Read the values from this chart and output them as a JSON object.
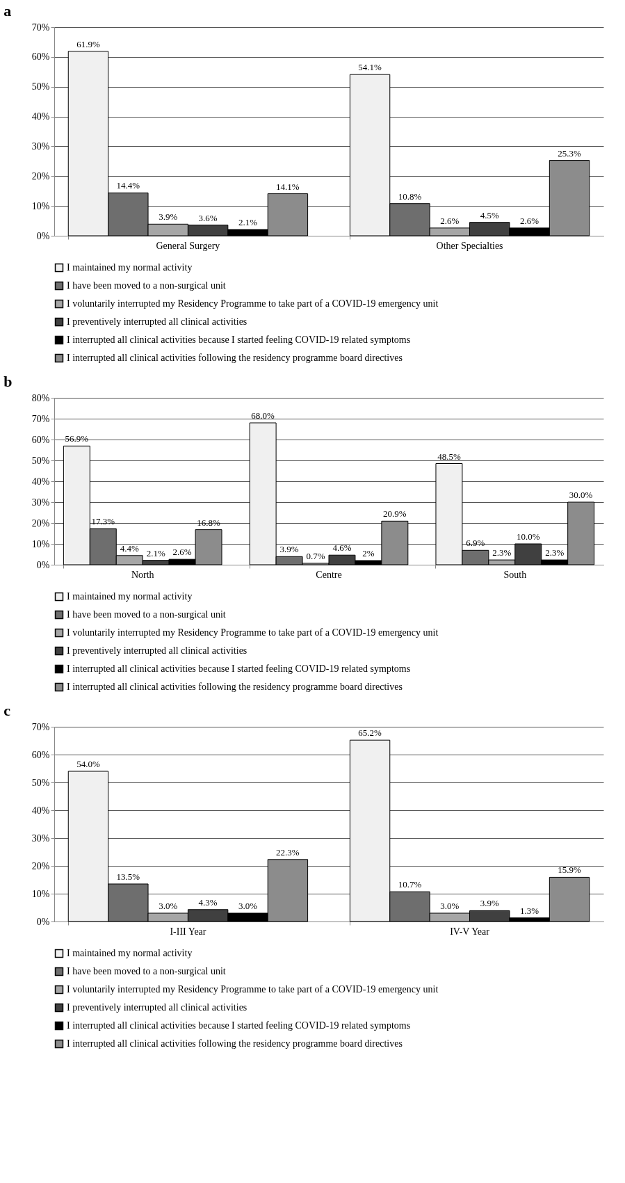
{
  "chart_data": [
    {
      "type": "bar",
      "title": "a",
      "categories": [
        "General Surgery",
        "Other Specialties"
      ],
      "ylim": [
        0,
        70
      ],
      "yticks": [
        {
          "value": 0,
          "label": "0%"
        },
        {
          "value": 10,
          "label": "10%"
        },
        {
          "value": 20,
          "label": "20%"
        },
        {
          "value": 30,
          "label": "30%"
        },
        {
          "value": 40,
          "label": "40%"
        },
        {
          "value": 50,
          "label": "50%"
        },
        {
          "value": 60,
          "label": "60%"
        },
        {
          "value": 70,
          "label": "70%"
        }
      ],
      "grid": "y",
      "legend": "bottom",
      "series": [
        {
          "name": "I maintained my normal activity",
          "color": "#f0f0f0",
          "values": [
            61.9,
            54.1
          ],
          "value_labels": [
            "61.9%",
            "54.1%"
          ]
        },
        {
          "name": "I have been moved to a non-surgical unit",
          "color": "#6e6e6e",
          "values": [
            14.4,
            10.8
          ],
          "value_labels": [
            "14.4%",
            "10.8%"
          ]
        },
        {
          "name": "I voluntarily interrupted my Residency Programme to take part of a COVID-19 emergency unit",
          "color": "#a6a6a6",
          "values": [
            3.9,
            2.6
          ],
          "value_labels": [
            "3.9%",
            "2.6%"
          ]
        },
        {
          "name": "I preventively interrupted all clinical activities",
          "color": "#404040",
          "values": [
            3.6,
            4.5
          ],
          "value_labels": [
            "3.6%",
            "4.5%"
          ]
        },
        {
          "name": "I interrupted all clinical activities because I started feeling COVID-19 related symptoms",
          "color": "#000000",
          "values": [
            2.1,
            2.6
          ],
          "value_labels": [
            "2.1%",
            "2.6%"
          ]
        },
        {
          "name": "I interrupted all clinical activities following the residency programme board directives",
          "color": "#8c8c8c",
          "values": [
            14.1,
            25.3
          ],
          "value_labels": [
            "14.1%",
            "25.3%"
          ]
        }
      ]
    },
    {
      "type": "bar",
      "title": "b",
      "categories": [
        "North",
        "Centre",
        "South"
      ],
      "ylim": [
        0,
        80
      ],
      "yticks": [
        {
          "value": 0,
          "label": "0%"
        },
        {
          "value": 10,
          "label": "10%"
        },
        {
          "value": 20,
          "label": "20%"
        },
        {
          "value": 30,
          "label": "30%"
        },
        {
          "value": 40,
          "label": "40%"
        },
        {
          "value": 50,
          "label": "50%"
        },
        {
          "value": 60,
          "label": "60%"
        },
        {
          "value": 70,
          "label": "70%"
        },
        {
          "value": 80,
          "label": "80%"
        }
      ],
      "grid": "y",
      "legend": "bottom",
      "series": [
        {
          "name": "I maintained my normal activity",
          "color": "#f0f0f0",
          "values": [
            56.9,
            68.0,
            48.5
          ],
          "value_labels": [
            "56.9%",
            "68.0%",
            "48.5%"
          ]
        },
        {
          "name": "I have been moved to a non-surgical unit",
          "color": "#6e6e6e",
          "values": [
            17.3,
            3.9,
            6.9
          ],
          "value_labels": [
            "17.3%",
            "3.9%",
            "6.9%"
          ]
        },
        {
          "name": "I voluntarily interrupted my Residency Programme to take part of a COVID-19 emergency unit",
          "color": "#a6a6a6",
          "values": [
            4.4,
            0.7,
            2.3
          ],
          "value_labels": [
            "4.4%",
            "0.7%",
            "2.3%"
          ]
        },
        {
          "name": "I preventively interrupted all clinical activities",
          "color": "#404040",
          "values": [
            2.1,
            4.6,
            10.0
          ],
          "value_labels": [
            "2.1%",
            "4.6%",
            "10.0%"
          ]
        },
        {
          "name": "I interrupted all clinical activities because I started feeling COVID-19 related symptoms",
          "color": "#000000",
          "values": [
            2.6,
            2,
            2.3
          ],
          "value_labels": [
            "2.6%",
            "2%",
            "2.3%"
          ]
        },
        {
          "name": "I interrupted all clinical activities following the residency programme board directives",
          "color": "#8c8c8c",
          "values": [
            16.8,
            20.9,
            30.0
          ],
          "value_labels": [
            "16.8%",
            "20.9%",
            "30.0%"
          ]
        }
      ]
    },
    {
      "type": "bar",
      "title": "c",
      "categories": [
        "I-III Year",
        "IV-V Year"
      ],
      "ylim": [
        0,
        70
      ],
      "yticks": [
        {
          "value": 0,
          "label": "0%"
        },
        {
          "value": 10,
          "label": "10%"
        },
        {
          "value": 20,
          "label": "20%"
        },
        {
          "value": 30,
          "label": "30%"
        },
        {
          "value": 40,
          "label": "40%"
        },
        {
          "value": 50,
          "label": "50%"
        },
        {
          "value": 60,
          "label": "60%"
        },
        {
          "value": 70,
          "label": "70%"
        }
      ],
      "grid": "y",
      "legend": "bottom",
      "series": [
        {
          "name": "I maintained my normal activity",
          "color": "#f0f0f0",
          "values": [
            54.0,
            65.2
          ],
          "value_labels": [
            "54.0%",
            "65.2%"
          ]
        },
        {
          "name": "I have been moved to a non-surgical unit",
          "color": "#6e6e6e",
          "values": [
            13.5,
            10.7
          ],
          "value_labels": [
            "13.5%",
            "10.7%"
          ]
        },
        {
          "name": "I voluntarily interrupted my Residency Programme to take part of a COVID-19 emergency unit",
          "color": "#a6a6a6",
          "values": [
            3.0,
            3.0
          ],
          "value_labels": [
            "3.0%",
            "3.0%"
          ]
        },
        {
          "name": "I preventively interrupted all clinical activities",
          "color": "#404040",
          "values": [
            4.3,
            3.9
          ],
          "value_labels": [
            "4.3%",
            "3.9%"
          ]
        },
        {
          "name": "I interrupted all clinical activities because I started feeling COVID-19 related symptoms",
          "color": "#000000",
          "values": [
            3.0,
            1.3
          ],
          "value_labels": [
            "3.0%",
            "1.3%"
          ]
        },
        {
          "name": "I interrupted all clinical activities following the residency programme board directives",
          "color": "#8c8c8c",
          "values": [
            22.3,
            15.9
          ],
          "value_labels": [
            "22.3%",
            "15.9%"
          ]
        }
      ]
    }
  ]
}
